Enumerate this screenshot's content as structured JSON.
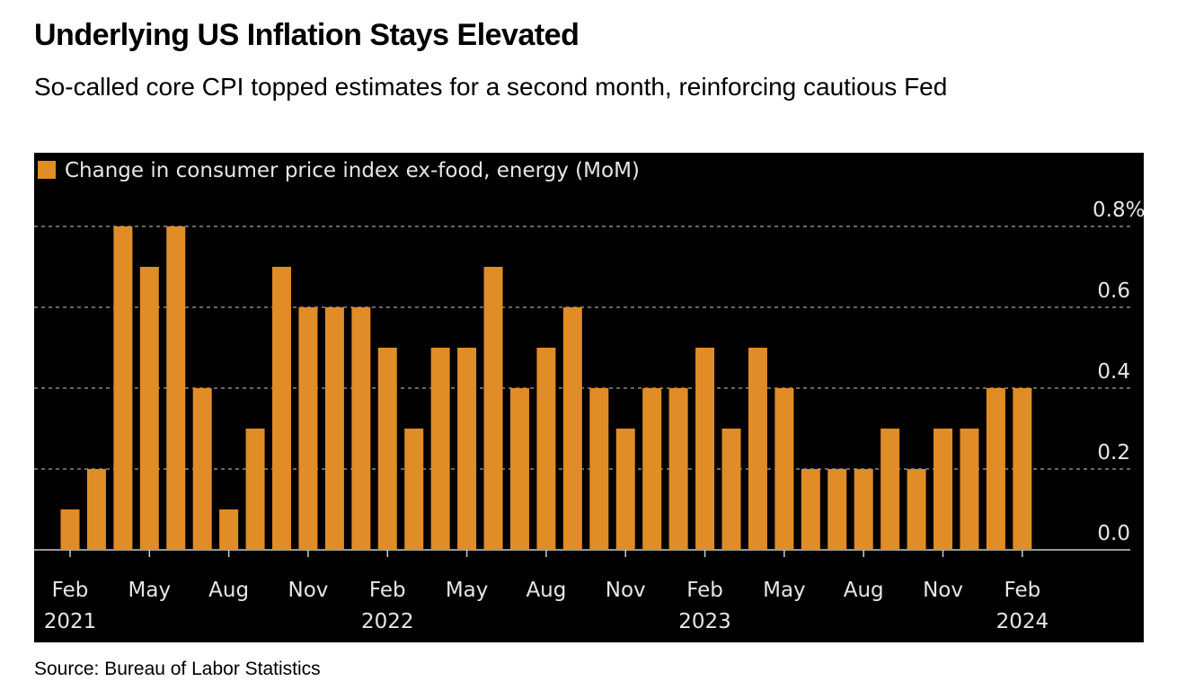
{
  "title": "Underlying US Inflation Stays Elevated",
  "subtitle": "So-called core CPI topped estimates for a second month, reinforcing cautious Fed",
  "source": "Source: Bureau of Labor Statistics",
  "colors": {
    "bar": "#e08c27",
    "background": "#000000",
    "grid": "#888888"
  },
  "chart_data": {
    "type": "bar",
    "legend": "Change in consumer price index ex-food, energy (MoM)",
    "legend_placement": "top-left",
    "ylim": [
      0,
      0.8
    ],
    "yticks": [
      {
        "v": 0,
        "label": "0.0"
      },
      {
        "v": 0.2,
        "label": "0.2"
      },
      {
        "v": 0.4,
        "label": "0.4"
      },
      {
        "v": 0.6,
        "label": "0.6"
      },
      {
        "v": 0.8,
        "label": "0.8%"
      }
    ],
    "categories": [
      "2021-02",
      "2021-03",
      "2021-04",
      "2021-05",
      "2021-06",
      "2021-07",
      "2021-08",
      "2021-09",
      "2021-10",
      "2021-11",
      "2021-12",
      "2022-01",
      "2022-02",
      "2022-03",
      "2022-04",
      "2022-05",
      "2022-06",
      "2022-07",
      "2022-08",
      "2022-09",
      "2022-10",
      "2022-11",
      "2022-12",
      "2023-01",
      "2023-02",
      "2023-03",
      "2023-04",
      "2023-05",
      "2023-06",
      "2023-07",
      "2023-08",
      "2023-09",
      "2023-10",
      "2023-11",
      "2023-12",
      "2024-01",
      "2024-02"
    ],
    "values": [
      0.1,
      0.2,
      0.8,
      0.7,
      0.8,
      0.4,
      0.1,
      0.3,
      0.7,
      0.6,
      0.6,
      0.6,
      0.5,
      0.3,
      0.5,
      0.5,
      0.7,
      0.4,
      0.5,
      0.6,
      0.4,
      0.3,
      0.4,
      0.4,
      0.5,
      0.3,
      0.5,
      0.4,
      0.2,
      0.2,
      0.2,
      0.3,
      0.2,
      0.3,
      0.3,
      0.4,
      0.4
    ],
    "xticks": [
      {
        "i": 0,
        "label": "Feb",
        "year": "2021"
      },
      {
        "i": 3,
        "label": "May"
      },
      {
        "i": 6,
        "label": "Aug"
      },
      {
        "i": 9,
        "label": "Nov"
      },
      {
        "i": 12,
        "label": "Feb",
        "year": "2022"
      },
      {
        "i": 15,
        "label": "May"
      },
      {
        "i": 18,
        "label": "Aug"
      },
      {
        "i": 21,
        "label": "Nov"
      },
      {
        "i": 24,
        "label": "Feb",
        "year": "2023"
      },
      {
        "i": 27,
        "label": "May"
      },
      {
        "i": 30,
        "label": "Aug"
      },
      {
        "i": 33,
        "label": "Nov"
      },
      {
        "i": 36,
        "label": "Feb",
        "year": "2024"
      }
    ]
  }
}
